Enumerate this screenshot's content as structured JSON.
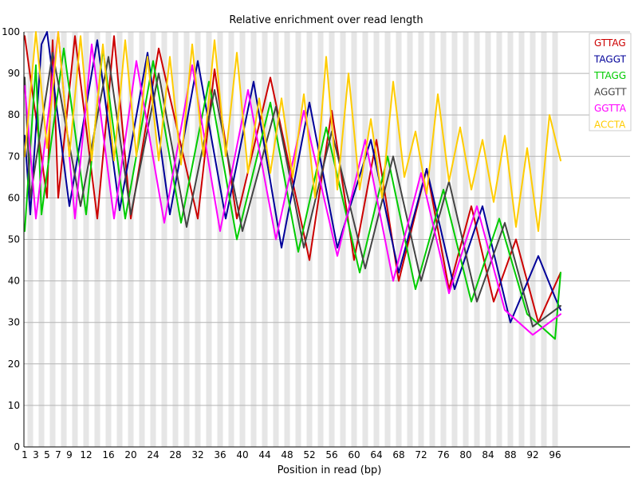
{
  "chart_data": {
    "type": "line",
    "title": "Relative enrichment over read length",
    "xlabel": "Position in read (bp)",
    "ylabel": "",
    "ylim": [
      0,
      100
    ],
    "yticks": [
      0,
      10,
      20,
      30,
      40,
      50,
      60,
      70,
      80,
      90,
      100
    ],
    "xlim": [
      1,
      97
    ],
    "xticks": [
      1,
      3,
      5,
      7,
      9,
      12,
      16,
      20,
      24,
      28,
      32,
      36,
      40,
      44,
      48,
      52,
      56,
      60,
      64,
      68,
      72,
      76,
      80,
      84,
      88,
      92,
      96
    ],
    "grid": true,
    "legend_position": "top-right",
    "series": [
      {
        "name": "GTTAG",
        "color": "#cc0000",
        "x": [
          1,
          5,
          6,
          7,
          10,
          14,
          17,
          20,
          25,
          32,
          35,
          39,
          45,
          52,
          56,
          60,
          64,
          68,
          73,
          77,
          81,
          85,
          89,
          93,
          97
        ],
        "y": [
          99,
          60,
          98,
          60,
          99,
          55,
          99,
          55,
          96,
          55,
          91,
          55,
          89,
          45,
          81,
          45,
          74,
          40,
          67,
          38,
          58,
          35,
          50,
          30,
          42
        ]
      },
      {
        "name": "TAGGT",
        "color": "#000099",
        "x": [
          1,
          2,
          4,
          5,
          9,
          14,
          18,
          23,
          27,
          32,
          37,
          42,
          47,
          52,
          57,
          63,
          68,
          73,
          78,
          83,
          88,
          93,
          96,
          97
        ],
        "y": [
          75,
          56,
          97,
          100,
          58,
          98,
          57,
          95,
          56,
          93,
          55,
          88,
          48,
          83,
          48,
          74,
          42,
          67,
          38,
          58,
          30,
          46,
          36,
          33
        ]
      },
      {
        "name": "TTAGG",
        "color": "#00cc00",
        "x": [
          1,
          3,
          4,
          8,
          12,
          15,
          19,
          24,
          29,
          34,
          39,
          45,
          50,
          55,
          61,
          66,
          71,
          76,
          81,
          86,
          91,
          96,
          97
        ],
        "y": [
          52,
          92,
          56,
          96,
          56,
          96,
          55,
          93,
          54,
          88,
          50,
          83,
          47,
          77,
          42,
          70,
          38,
          62,
          35,
          55,
          32,
          26,
          42
        ]
      },
      {
        "name": "AGGTT",
        "color": "#444444",
        "x": [
          1,
          2,
          6,
          11,
          16,
          20,
          25,
          30,
          35,
          40,
          46,
          51,
          56,
          62,
          67,
          72,
          77,
          82,
          87,
          92,
          97
        ],
        "y": [
          89,
          60,
          95,
          58,
          94,
          56,
          90,
          53,
          86,
          52,
          82,
          48,
          76,
          43,
          70,
          40,
          64,
          35,
          54,
          29,
          34
        ]
      },
      {
        "name": "GGTTA",
        "color": "#ff00ff",
        "x": [
          1,
          3,
          7,
          10,
          13,
          17,
          21,
          26,
          31,
          36,
          41,
          46,
          51,
          57,
          62,
          67,
          72,
          77,
          82,
          87,
          92,
          97
        ],
        "y": [
          87,
          55,
          100,
          55,
          97,
          55,
          93,
          54,
          92,
          52,
          86,
          50,
          81,
          46,
          74,
          40,
          66,
          37,
          58,
          33,
          27,
          32
        ]
      },
      {
        "name": "ACCTA",
        "color": "#ffcc00",
        "x": [
          1,
          3,
          5,
          7,
          9,
          11,
          13,
          15,
          17,
          19,
          21,
          23,
          25,
          27,
          29,
          31,
          33,
          35,
          37,
          39,
          41,
          43,
          45,
          47,
          49,
          51,
          53,
          55,
          57,
          59,
          61,
          63,
          65,
          67,
          69,
          71,
          73,
          75,
          77,
          79,
          81,
          83,
          85,
          87,
          89,
          91,
          93,
          95,
          97
        ],
        "y": [
          70,
          100,
          72,
          100,
          70,
          99,
          69,
          97,
          69,
          98,
          70,
          94,
          69,
          94,
          68,
          97,
          70,
          98,
          70,
          95,
          66,
          84,
          66,
          84,
          65,
          85,
          60,
          94,
          62,
          90,
          62,
          79,
          60,
          88,
          65,
          76,
          61,
          85,
          64,
          77,
          62,
          74,
          59,
          75,
          53,
          72,
          52,
          80,
          69
        ]
      }
    ]
  }
}
